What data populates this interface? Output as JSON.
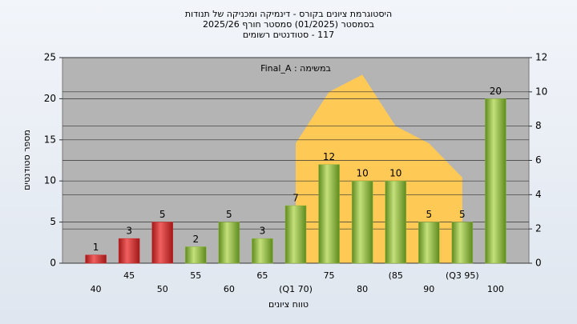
{
  "chart_data": {
    "type": "bar",
    "title": "היסטוגרמת ציונים בקורס - דינמיקה ומכניקה של תנודות",
    "subtitle": "בסמסטר  (01/2025)  סמסטר חורף 2025/26",
    "subtitle2": "117 - סטודנטים רשומים",
    "annotation": "במשימה : Final_A",
    "x_label": "טווח ציונים",
    "y_label": "מספר סטודנטים",
    "categories": [
      "40",
      "45",
      "50",
      "55",
      "60",
      "65",
      "(Q1 70)",
      "75",
      "80",
      "(85",
      "90",
      "(Q3 95)",
      "100"
    ],
    "series": [
      {
        "name": "bars",
        "values": [
          1,
          3,
          5,
          2,
          5,
          3,
          7,
          12,
          10,
          10,
          5,
          5,
          20
        ],
        "colors": [
          "#d42a2a",
          "#d42a2a",
          "#d42a2a",
          "#8db83c",
          "#8db83c",
          "#8db83c",
          "#8db83c",
          "#8db83c",
          "#8db83c",
          "#8db83c",
          "#8db83c",
          "#8db83c",
          "#8db83c"
        ]
      },
      {
        "name": "distribution",
        "axis": "y2",
        "color": "#ffc955",
        "values": [
          null,
          null,
          null,
          null,
          null,
          null,
          7,
          10,
          11,
          8,
          7,
          5,
          null
        ]
      }
    ],
    "ylim": [
      0,
      25
    ],
    "yticks": [
      0,
      5,
      10,
      15,
      20,
      25
    ],
    "y2lim": [
      0,
      12
    ],
    "y2ticks": [
      0,
      2,
      4,
      6,
      8,
      10,
      12
    ],
    "grid": true
  }
}
